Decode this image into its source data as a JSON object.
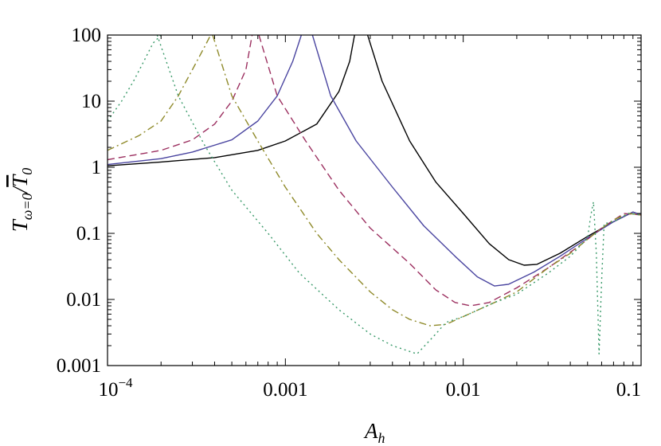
{
  "chart_data": {
    "type": "line",
    "title": "",
    "xlabel": "A_h",
    "ylabel": "T_{ω=0}/T̄_0",
    "xscale": "log",
    "yscale": "log",
    "xlim": [
      0.0001,
      0.1
    ],
    "ylim": [
      0.001,
      100
    ],
    "grid": false,
    "legend": "none",
    "x_ticks": [
      {
        "value": 0.0001,
        "label": "10",
        "exp": "−4"
      },
      {
        "value": 0.001,
        "label": "0.001"
      },
      {
        "value": 0.01,
        "label": "0.01"
      },
      {
        "value": 0.1,
        "label": "0.1"
      }
    ],
    "y_ticks": [
      {
        "value": 0.001,
        "label": "0.001"
      },
      {
        "value": 0.01,
        "label": "0.01"
      },
      {
        "value": 0.1,
        "label": "0.1"
      },
      {
        "value": 1,
        "label": "1"
      },
      {
        "value": 10,
        "label": "10"
      },
      {
        "value": 100,
        "label": "100"
      }
    ],
    "series": [
      {
        "style": "solid",
        "color": "#000000",
        "points": [
          [
            0.0001,
            1.05
          ],
          [
            0.0002,
            1.2
          ],
          [
            0.0004,
            1.4
          ],
          [
            0.0007,
            1.8
          ],
          [
            0.001,
            2.5
          ],
          [
            0.0015,
            4.5
          ],
          [
            0.002,
            14
          ],
          [
            0.0023,
            40
          ],
          [
            0.00245,
            100
          ],
          null,
          [
            0.0029,
            100
          ],
          [
            0.0035,
            20
          ],
          [
            0.005,
            2.5
          ],
          [
            0.007,
            0.6
          ],
          [
            0.01,
            0.2
          ],
          [
            0.014,
            0.07
          ],
          [
            0.018,
            0.04
          ],
          [
            0.022,
            0.033
          ],
          [
            0.026,
            0.034
          ],
          [
            0.035,
            0.05
          ],
          [
            0.05,
            0.09
          ],
          [
            0.07,
            0.15
          ],
          [
            0.09,
            0.21
          ],
          [
            0.1,
            0.19
          ]
        ]
      },
      {
        "style": "solid",
        "color": "#4a45a0",
        "points": [
          [
            0.0001,
            1.1
          ],
          [
            0.0002,
            1.35
          ],
          [
            0.0003,
            1.7
          ],
          [
            0.0005,
            2.6
          ],
          [
            0.0007,
            5
          ],
          [
            0.0009,
            12
          ],
          [
            0.0011,
            40
          ],
          [
            0.00123,
            100
          ],
          null,
          [
            0.00142,
            100
          ],
          [
            0.0018,
            12
          ],
          [
            0.0025,
            2.5
          ],
          [
            0.004,
            0.5
          ],
          [
            0.006,
            0.13
          ],
          [
            0.009,
            0.045
          ],
          [
            0.012,
            0.022
          ],
          [
            0.015,
            0.016
          ],
          [
            0.018,
            0.017
          ],
          [
            0.025,
            0.026
          ],
          [
            0.035,
            0.045
          ],
          [
            0.05,
            0.085
          ],
          [
            0.07,
            0.15
          ],
          [
            0.09,
            0.21
          ],
          [
            0.1,
            0.19
          ]
        ]
      },
      {
        "style": "dashed",
        "color": "#9c3060",
        "points": [
          [
            0.0001,
            1.3
          ],
          [
            0.0002,
            1.8
          ],
          [
            0.0003,
            2.6
          ],
          [
            0.0004,
            4.5
          ],
          [
            0.0005,
            10
          ],
          [
            0.0006,
            30
          ],
          [
            0.00065,
            100
          ],
          null,
          [
            0.00071,
            100
          ],
          [
            0.0009,
            12
          ],
          [
            0.0013,
            2.5
          ],
          [
            0.002,
            0.45
          ],
          [
            0.003,
            0.12
          ],
          [
            0.005,
            0.035
          ],
          [
            0.007,
            0.014
          ],
          [
            0.009,
            0.009
          ],
          [
            0.011,
            0.008
          ],
          [
            0.014,
            0.009
          ],
          [
            0.02,
            0.015
          ],
          [
            0.03,
            0.03
          ],
          [
            0.045,
            0.065
          ],
          [
            0.06,
            0.12
          ],
          [
            0.08,
            0.2
          ],
          [
            0.1,
            0.19
          ]
        ]
      },
      {
        "style": "dashdot",
        "color": "#8f8a2a",
        "points": [
          [
            0.0001,
            1.8
          ],
          [
            0.00015,
            3
          ],
          [
            0.0002,
            5
          ],
          [
            0.00025,
            12
          ],
          [
            0.0003,
            30
          ],
          [
            0.00035,
            65
          ],
          [
            0.00038,
            100
          ],
          null,
          [
            0.00039,
            100
          ],
          [
            0.0005,
            12
          ],
          [
            0.0007,
            2.5
          ],
          [
            0.001,
            0.5
          ],
          [
            0.0015,
            0.1
          ],
          [
            0.002,
            0.04
          ],
          [
            0.003,
            0.013
          ],
          [
            0.004,
            0.007
          ],
          [
            0.005,
            0.005
          ],
          [
            0.0065,
            0.004
          ],
          [
            0.008,
            0.0042
          ],
          [
            0.01,
            0.0055
          ],
          [
            0.015,
            0.009
          ],
          [
            0.02,
            0.013
          ],
          [
            0.03,
            0.03
          ],
          [
            0.04,
            0.05
          ],
          [
            0.055,
            0.1
          ],
          [
            0.07,
            0.16
          ],
          [
            0.085,
            0.2
          ],
          [
            0.1,
            0.19
          ]
        ]
      },
      {
        "style": "dotted",
        "color": "#3a9a6a",
        "points": [
          [
            0.0001,
            5
          ],
          [
            0.00012,
            10
          ],
          [
            0.00014,
            20
          ],
          [
            0.00016,
            40
          ],
          [
            0.00018,
            75
          ],
          [
            0.0002,
            100
          ],
          null,
          [
            0.00019,
            100
          ],
          [
            0.00025,
            12
          ],
          [
            0.00035,
            2.2
          ],
          [
            0.0005,
            0.45
          ],
          [
            0.0008,
            0.1
          ],
          [
            0.0012,
            0.025
          ],
          [
            0.002,
            0.007
          ],
          [
            0.003,
            0.003
          ],
          [
            0.004,
            0.002
          ],
          [
            0.0055,
            0.0015
          ],
          [
            0.007,
            0.003
          ],
          [
            0.008,
            0.0045
          ],
          [
            0.01,
            0.0055
          ],
          [
            0.015,
            0.009
          ],
          [
            0.02,
            0.012
          ],
          [
            0.03,
            0.025
          ],
          [
            0.04,
            0.045
          ],
          [
            0.05,
            0.085
          ],
          [
            0.052,
            0.18
          ],
          [
            0.054,
            0.3
          ],
          [
            0.056,
            0.05
          ],
          [
            0.058,
            0.0015
          ],
          [
            0.06,
            0.02
          ],
          [
            0.062,
            0.14
          ],
          [
            0.07,
            0.15
          ],
          [
            0.085,
            0.2
          ],
          [
            0.1,
            0.19
          ]
        ]
      }
    ]
  }
}
